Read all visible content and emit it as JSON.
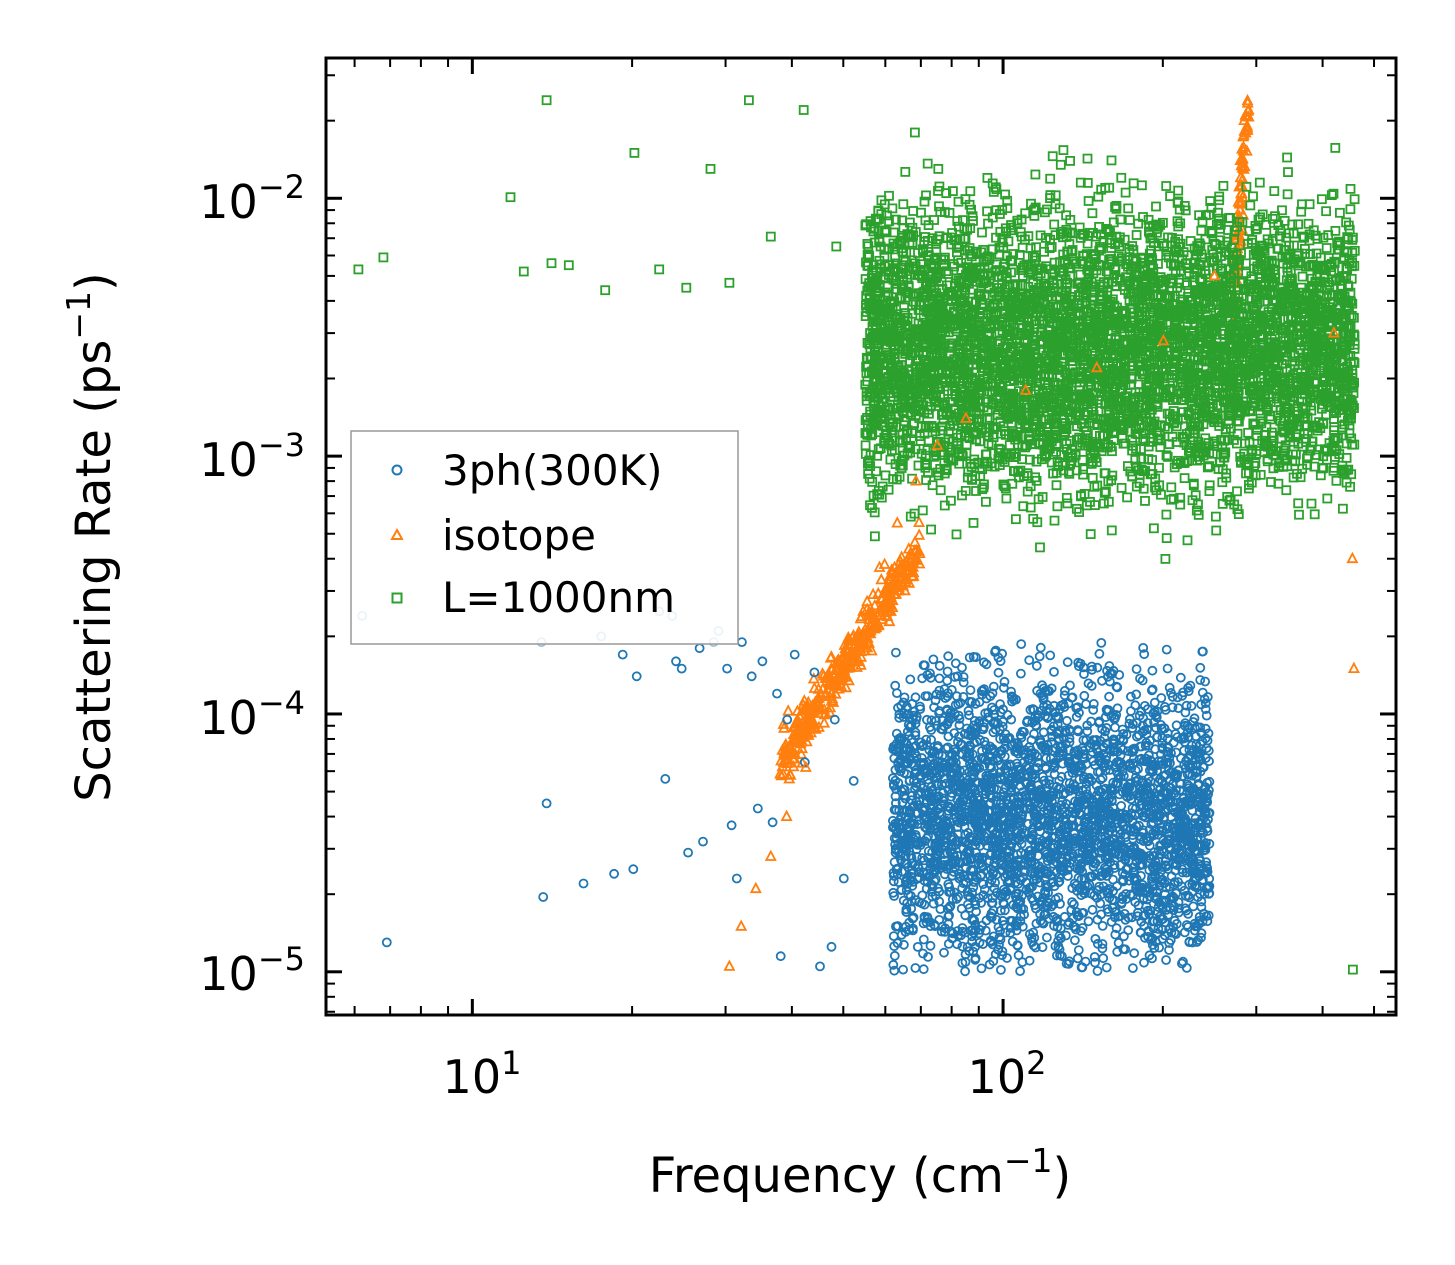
{
  "chart_data": {
    "type": "scatter",
    "xscale": "log",
    "yscale": "log",
    "xlim": [
      5.3,
      550
    ],
    "ylim": [
      6.8e-06,
      0.035
    ],
    "xlabel_base": "Frequency (cm",
    "xlabel_exp": "−1",
    "xlabel_close": ")",
    "ylabel_base": "Scattering Rate (ps",
    "ylabel_exp": "−1",
    "ylabel_close": ")",
    "x_ticks": [
      {
        "value": 10,
        "base": "10",
        "exp": "1"
      },
      {
        "value": 100,
        "base": "10",
        "exp": "2"
      }
    ],
    "y_ticks": [
      {
        "value": 1e-05,
        "base": "10",
        "exp": "−5"
      },
      {
        "value": 0.0001,
        "base": "10",
        "exp": "−4"
      },
      {
        "value": 0.001,
        "base": "10",
        "exp": "−3"
      },
      {
        "value": 0.01,
        "base": "10",
        "exp": "−2"
      }
    ],
    "legend_position": "center-left",
    "series": [
      {
        "name": "3ph(300K)",
        "marker": "circle",
        "color": "#1f77b4",
        "points": [
          [
            6.2,
            0.00024
          ],
          [
            6.9,
            1.3e-05
          ],
          [
            13.5,
            0.00019
          ],
          [
            13.6,
            1.95e-05
          ],
          [
            13.8,
            4.5e-05
          ],
          [
            16.2,
            2.2e-05
          ],
          [
            17.5,
            0.0002
          ],
          [
            18.5,
            2.4e-05
          ],
          [
            19.2,
            0.00017
          ],
          [
            20.1,
            2.5e-05
          ],
          [
            20.4,
            0.00014
          ],
          [
            22.5,
            0.00025
          ],
          [
            23.1,
            5.6e-05
          ],
          [
            23.8,
            0.00024
          ],
          [
            24.2,
            0.00016
          ],
          [
            24.8,
            0.00015
          ],
          [
            25.5,
            2.9e-05
          ],
          [
            26.8,
            0.00018
          ],
          [
            27.2,
            3.2e-05
          ],
          [
            28.5,
            0.00019
          ],
          [
            29.1,
            0.00021
          ],
          [
            30.2,
            0.00015
          ],
          [
            30.8,
            3.7e-05
          ],
          [
            31.5,
            2.3e-05
          ],
          [
            32.2,
            0.00019
          ],
          [
            33.6,
            0.00014
          ],
          [
            34.5,
            4.3e-05
          ],
          [
            35.2,
            0.00016
          ],
          [
            36.8,
            3.8e-05
          ],
          [
            37.5,
            0.00012
          ],
          [
            38.1,
            1.15e-05
          ],
          [
            39.2,
            9.5e-05
          ],
          [
            40.5,
            0.00017
          ],
          [
            42.3,
            6.5e-05
          ],
          [
            44.1,
            0.000145
          ],
          [
            45.2,
            1.05e-05
          ],
          [
            47.5,
            1.25e-05
          ],
          [
            48.2,
            9.5e-05
          ],
          [
            50.1,
            2.3e-05
          ],
          [
            52.3,
            5.5e-05
          ]
        ]
      },
      {
        "name": "isotope",
        "marker": "triangle",
        "color": "#ff7f0e",
        "points": [
          [
            30.5,
            1.05e-05
          ],
          [
            32.1,
            1.5e-05
          ],
          [
            34.2,
            2.1e-05
          ],
          [
            36.5,
            2.8e-05
          ],
          [
            39.1,
            4e-05
          ],
          [
            42.5,
            6.2e-05
          ],
          [
            46.2,
            0.0001
          ],
          [
            50.3,
            0.00016
          ],
          [
            54.5,
            0.00025
          ],
          [
            58.5,
            0.00037
          ],
          [
            63.2,
            0.00055
          ],
          [
            68.5,
            0.0008
          ],
          [
            75.2,
            0.0011
          ],
          [
            85.1,
            0.0014
          ],
          [
            110.3,
            0.0018
          ],
          [
            150.2,
            0.0022
          ],
          [
            200.5,
            0.0028
          ],
          [
            250.2,
            0.005
          ],
          [
            280.1,
            0.012
          ],
          [
            290.2,
            0.022
          ],
          [
            420.1,
            0.003
          ],
          [
            455.3,
            0.0004
          ],
          [
            458.2,
            0.00015
          ]
        ]
      },
      {
        "name": "L=1000nm",
        "marker": "square",
        "color": "#2ca02c",
        "points": [
          [
            6.1,
            0.0053
          ],
          [
            6.8,
            0.0059
          ],
          [
            11.8,
            0.0101
          ],
          [
            12.5,
            0.0052
          ],
          [
            13.8,
            0.024
          ],
          [
            14.1,
            0.0056
          ],
          [
            15.2,
            0.0055
          ],
          [
            17.8,
            0.0044
          ],
          [
            20.2,
            0.015
          ],
          [
            22.5,
            0.0053
          ],
          [
            25.3,
            0.0045
          ],
          [
            28.1,
            0.013
          ],
          [
            30.5,
            0.0047
          ],
          [
            33.2,
            0.024
          ],
          [
            36.5,
            0.0071
          ],
          [
            42.1,
            0.022
          ],
          [
            48.5,
            0.0065
          ],
          [
            58.2,
            0.0089
          ],
          [
            68.2,
            0.018
          ],
          [
            75.5,
            0.013
          ],
          [
            82.1,
            0.0038
          ],
          [
            91.2,
            0.0027
          ],
          [
            112.5,
            0.0042
          ],
          [
            135.2,
            0.0063
          ],
          [
            158.1,
            0.0051
          ],
          [
            182.3,
            0.0035
          ],
          [
            205.2,
            0.0059
          ],
          [
            231.1,
            0.0044
          ],
          [
            262.5,
            0.0036
          ],
          [
            300.2,
            0.0061
          ],
          [
            350.1,
            0.0048
          ],
          [
            415.3,
            0.0052
          ],
          [
            455.1,
            0.0039
          ],
          [
            456.2,
            1.02e-05
          ]
        ]
      }
    ]
  }
}
